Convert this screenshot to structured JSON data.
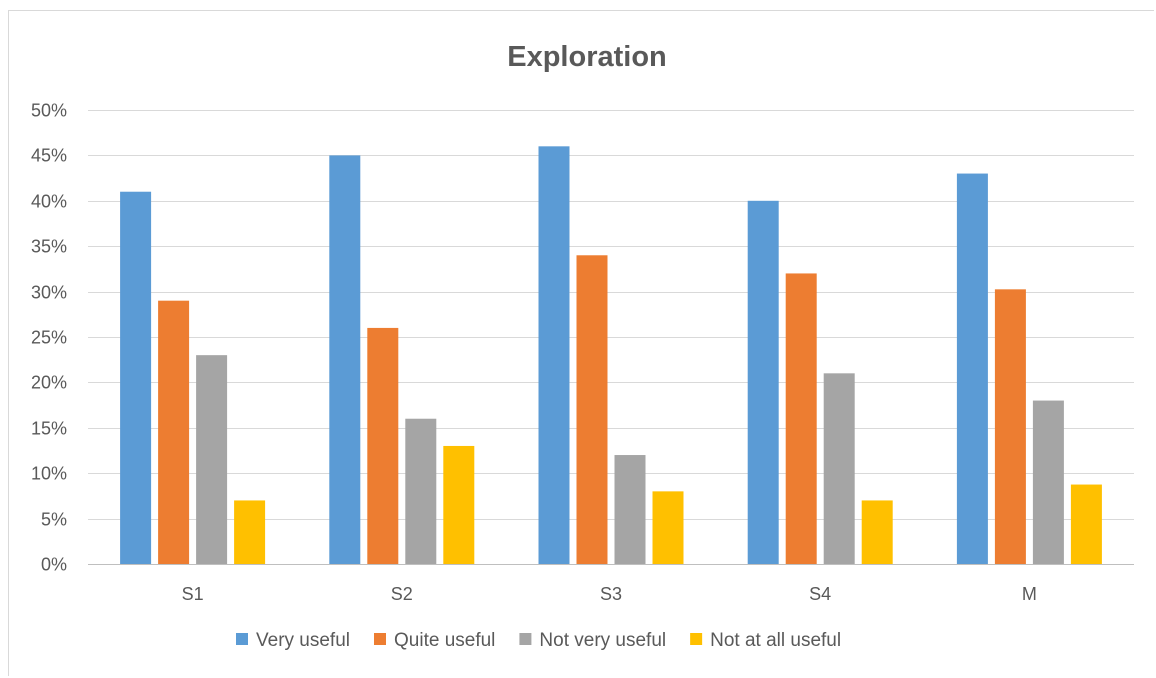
{
  "chart_data": {
    "type": "bar",
    "title": "Exploration",
    "xlabel": "",
    "ylabel": "",
    "categories": [
      "S1",
      "S2",
      "S3",
      "S4",
      "M"
    ],
    "ylim": [
      0,
      50
    ],
    "y_ticks": [
      "0%",
      "5%",
      "10%",
      "15%",
      "20%",
      "25%",
      "30%",
      "35%",
      "40%",
      "45%",
      "50%"
    ],
    "series": [
      {
        "name": "Very useful",
        "color": "#5b9bd5",
        "values": [
          41,
          45,
          46,
          40,
          43
        ]
      },
      {
        "name": "Quite useful",
        "color": "#ed7d31",
        "values": [
          29,
          26,
          34,
          32,
          30.25
        ]
      },
      {
        "name": "Not very useful",
        "color": "#a5a5a5",
        "values": [
          23,
          16,
          12,
          21,
          18
        ]
      },
      {
        "name": "Not at all useful",
        "color": "#ffc000",
        "values": [
          7,
          13,
          8,
          7,
          8.75
        ]
      }
    ],
    "grid": true,
    "legend_position": "bottom"
  }
}
